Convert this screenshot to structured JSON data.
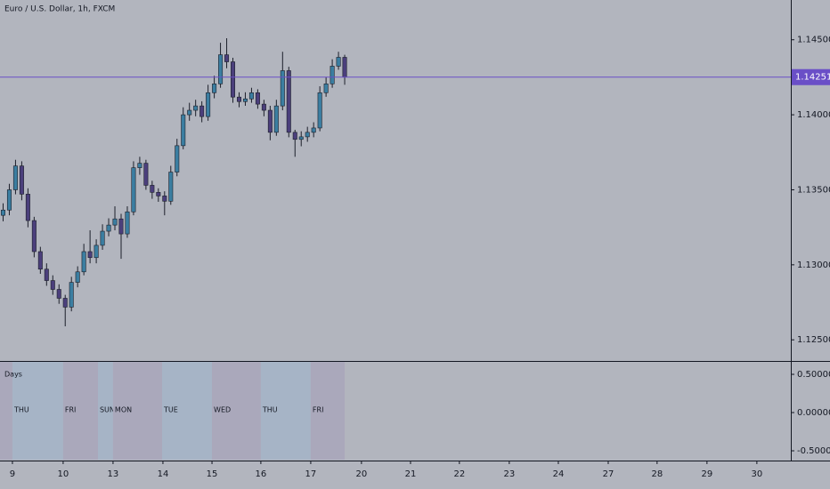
{
  "chart_data": [
    {
      "type": "candlestick",
      "title": "Euro / U.S. Dollar, 1h, FXCM",
      "x": [
        1.5,
        4.5,
        7.5,
        10.5,
        13.5,
        16.5,
        19.5,
        22.5,
        25.5,
        28.5,
        31.5,
        34.5,
        37.5,
        40.5,
        43.5,
        46.5,
        49.5,
        52.5,
        55.5,
        58.5,
        61.5,
        64.5,
        67.5,
        70.5,
        73.5,
        76.5,
        79.5,
        82.5,
        85.5,
        88.5,
        91.5,
        94.5,
        97.5,
        100.5,
        103.5,
        106.5,
        109.5,
        112.5,
        115.5,
        118.5,
        121.5,
        124.5,
        127.5,
        130.5,
        133.5,
        136.5,
        139.5,
        142.5,
        145.5,
        148.5,
        151.5,
        154.5,
        157.5,
        160.5,
        163.5,
        166.5
      ],
      "open": [
        1.1333,
        1.13365,
        1.135,
        1.13659,
        1.13471,
        1.13295,
        1.13088,
        1.12971,
        1.12895,
        1.12836,
        1.12777,
        1.12718,
        1.12883,
        1.12953,
        1.13088,
        1.13048,
        1.1313,
        1.13224,
        1.13265,
        1.13306,
        1.13206,
        1.13353,
        1.13647,
        1.13677,
        1.1353,
        1.13483,
        1.13459,
        1.13424,
        1.13618,
        1.13794,
        1.14,
        1.1403,
        1.14059,
        1.13988,
        1.14147,
        1.14206,
        1.144,
        1.14353,
        1.14118,
        1.14088,
        1.14106,
        1.14147,
        1.14071,
        1.1403,
        1.13883,
        1.14059,
        1.14294,
        1.13883,
        1.13836,
        1.13853,
        1.13883,
        1.13912,
        1.14147,
        1.14206,
        1.14324,
        1.14383
      ],
      "high": [
        1.1341,
        1.1354,
        1.137,
        1.1369,
        1.1351,
        1.1332,
        1.1312,
        1.1301,
        1.1293,
        1.1287,
        1.128,
        1.1292,
        1.1299,
        1.1314,
        1.1323,
        1.1317,
        1.1327,
        1.1331,
        1.1339,
        1.1334,
        1.1339,
        1.1369,
        1.1372,
        1.137,
        1.1356,
        1.1351,
        1.1349,
        1.1366,
        1.1384,
        1.1405,
        1.1408,
        1.141,
        1.1409,
        1.142,
        1.1426,
        1.1448,
        1.1451,
        1.1438,
        1.1415,
        1.1415,
        1.1418,
        1.1417,
        1.141,
        1.1406,
        1.141,
        1.1442,
        1.1432,
        1.139,
        1.1389,
        1.1392,
        1.1395,
        1.1419,
        1.1425,
        1.1437,
        1.1442,
        1.144
      ],
      "low": [
        1.1329,
        1.1333,
        1.1347,
        1.1343,
        1.1325,
        1.1305,
        1.1294,
        1.1286,
        1.128,
        1.1274,
        1.1259,
        1.1269,
        1.1285,
        1.1293,
        1.1301,
        1.1301,
        1.131,
        1.1319,
        1.1323,
        1.1304,
        1.1318,
        1.1333,
        1.136,
        1.135,
        1.1344,
        1.1342,
        1.1333,
        1.134,
        1.1359,
        1.1377,
        1.1396,
        1.1399,
        1.1395,
        1.1396,
        1.1411,
        1.1418,
        1.1431,
        1.1408,
        1.1405,
        1.1406,
        1.1408,
        1.1404,
        1.1399,
        1.1383,
        1.1386,
        1.1403,
        1.1385,
        1.1372,
        1.1379,
        1.1382,
        1.1385,
        1.1389,
        1.1412,
        1.1418,
        1.143,
        1.142
      ],
      "close": [
        1.13365,
        1.135,
        1.13659,
        1.13471,
        1.13295,
        1.13088,
        1.12971,
        1.12895,
        1.12836,
        1.12777,
        1.12718,
        1.12883,
        1.12953,
        1.13088,
        1.13048,
        1.1313,
        1.13224,
        1.13265,
        1.13306,
        1.13206,
        1.13353,
        1.13647,
        1.13677,
        1.1353,
        1.13483,
        1.13459,
        1.13424,
        1.13618,
        1.13794,
        1.14,
        1.1403,
        1.14059,
        1.13988,
        1.14147,
        1.14206,
        1.144,
        1.14353,
        1.14118,
        1.14088,
        1.14106,
        1.14147,
        1.14071,
        1.1403,
        1.13883,
        1.14059,
        1.14294,
        1.13883,
        1.13836,
        1.13853,
        1.13883,
        1.13912,
        1.14147,
        1.14206,
        1.14324,
        1.14383,
        1.14251
      ],
      "up_color": "#3b7ea1",
      "down_color": "#4b3f7c",
      "last_price": {
        "value": 1.14251,
        "label": "1.14251"
      },
      "last_price_color": "#6a4fc7",
      "xlim": [
        0,
        382
      ],
      "ylim": [
        1.12365,
        1.14765
      ],
      "yticks": [
        {
          "value": 1.125,
          "label": "1.12500"
        },
        {
          "value": 1.13,
          "label": "1.13000"
        },
        {
          "value": 1.135,
          "label": "1.13500"
        },
        {
          "value": 1.14,
          "label": "1.14000"
        },
        {
          "value": 1.145,
          "label": "1.14500"
        }
      ]
    },
    {
      "type": "bands",
      "title": "Days",
      "categories": [
        null,
        "THU",
        "FRI",
        "SUN",
        "MON",
        "TUE",
        "WED",
        "THU",
        "FRI"
      ],
      "ranges": [
        [
          0,
          6
        ],
        [
          6,
          30.5
        ],
        [
          30.5,
          47.3
        ],
        [
          47.3,
          54.6
        ],
        [
          54.6,
          78.3
        ],
        [
          78.3,
          102.4
        ],
        [
          102.4,
          126
        ],
        [
          126,
          150.1
        ],
        [
          150.1,
          166.5
        ]
      ],
      "colors": [
        "#aaa8bb",
        "#a6b4c6",
        "#aaa8bb",
        "#a6b4c6",
        "#aaa8bb",
        "#a6b4c6",
        "#aaa8bb",
        "#a6b4c6",
        "#aaa8bb"
      ],
      "xlim": [
        0,
        382
      ],
      "ylim": [
        -0.616,
        0.663
      ],
      "yticks": [
        {
          "value": -0.5,
          "label": "-0.50000"
        },
        {
          "value": 0,
          "label": "0.00000"
        },
        {
          "value": 0.5,
          "label": "0.50000"
        }
      ],
      "xticks": [
        {
          "value": 6,
          "label": "9"
        },
        {
          "value": 30.5,
          "label": "10"
        },
        {
          "value": 54.6,
          "label": "13"
        },
        {
          "value": 78.7,
          "label": "14"
        },
        {
          "value": 102.4,
          "label": "15"
        },
        {
          "value": 126,
          "label": "16"
        },
        {
          "value": 150.1,
          "label": "17"
        },
        {
          "value": 174.6,
          "label": "20"
        },
        {
          "value": 198.3,
          "label": "21"
        },
        {
          "value": 221.9,
          "label": "22"
        },
        {
          "value": 246,
          "label": "23"
        },
        {
          "value": 269.7,
          "label": "24"
        },
        {
          "value": 293.8,
          "label": "27"
        },
        {
          "value": 317.4,
          "label": "28"
        },
        {
          "value": 341.5,
          "label": "29"
        },
        {
          "value": 365.6,
          "label": "30"
        }
      ]
    }
  ]
}
